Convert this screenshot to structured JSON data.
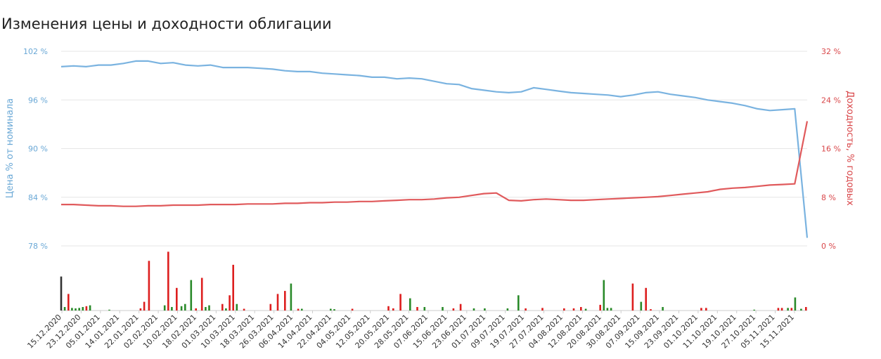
{
  "chart_data": {
    "type": "line",
    "title": "Изменения цены и доходности облигации",
    "y_left": {
      "label": "Цена % от номинала",
      "ticks": [
        "102 %",
        "96 %",
        "90 %",
        "84 %",
        "78 %"
      ],
      "tick_values": [
        102,
        96,
        90,
        84,
        78
      ],
      "range": [
        78,
        102
      ],
      "color": "#7ab3e0"
    },
    "y_right": {
      "label": "Доходность, % годовых",
      "ticks": [
        "32 %",
        "24 %",
        "16 %",
        "8 %",
        "0 %"
      ],
      "tick_values": [
        32,
        24,
        16,
        8,
        0
      ],
      "range": [
        0,
        32
      ],
      "color": "#e05a5c"
    },
    "x_ticks": [
      "15.12.2020",
      "23.12.2020",
      "05.01.2021",
      "14.01.2021",
      "22.01.2021",
      "02.02.2021",
      "10.02.2021",
      "18.02.2021",
      "01.03.2021",
      "10.03.2021",
      "18.03.2021",
      "26.03.2021",
      "06.04.2021",
      "14.04.2021",
      "22.04.2021",
      "04.05.2021",
      "12.05.2021",
      "20.05.2021",
      "28.05.2021",
      "07.06.2021",
      "15.06.2021",
      "23.06.2021",
      "01.07.2021",
      "09.07.2021",
      "19.07.2021",
      "27.07.2021",
      "04.08.2021",
      "12.08.2021",
      "20.08.2021",
      "30.08.2021",
      "07.09.2021",
      "15.09.2021",
      "23.09.2021",
      "01.10.2021",
      "11.10.2021",
      "19.10.2021",
      "27.10.2021",
      "05.11.2021",
      "15.11.2021"
    ],
    "series": [
      {
        "axis": "left",
        "color": "#7ab3e0",
        "points": [
          [
            0,
            100.1
          ],
          [
            1,
            100.2
          ],
          [
            2,
            100.1
          ],
          [
            3,
            100.3
          ],
          [
            4,
            100.3
          ],
          [
            5,
            100.5
          ],
          [
            6,
            100.8
          ],
          [
            7,
            100.8
          ],
          [
            8,
            100.5
          ],
          [
            9,
            100.6
          ],
          [
            10,
            100.3
          ],
          [
            11,
            100.2
          ],
          [
            12,
            100.3
          ],
          [
            13,
            100.0
          ],
          [
            14,
            100.0
          ],
          [
            15,
            100.0
          ],
          [
            16,
            99.9
          ],
          [
            17,
            99.8
          ],
          [
            18,
            99.6
          ],
          [
            19,
            99.5
          ],
          [
            20,
            99.5
          ],
          [
            21,
            99.3
          ],
          [
            22,
            99.2
          ],
          [
            23,
            99.1
          ],
          [
            24,
            99.0
          ],
          [
            25,
            98.8
          ],
          [
            26,
            98.8
          ],
          [
            27,
            98.6
          ],
          [
            28,
            98.7
          ],
          [
            29,
            98.6
          ],
          [
            30,
            98.3
          ],
          [
            31,
            98.0
          ],
          [
            32,
            97.9
          ],
          [
            33,
            97.4
          ],
          [
            34,
            97.2
          ],
          [
            35,
            97.0
          ],
          [
            36,
            96.9
          ],
          [
            37,
            97.0
          ],
          [
            38,
            97.5
          ],
          [
            39,
            97.3
          ],
          [
            40,
            97.1
          ],
          [
            41,
            96.9
          ],
          [
            42,
            96.8
          ],
          [
            43,
            96.7
          ],
          [
            44,
            96.6
          ],
          [
            45,
            96.4
          ],
          [
            46,
            96.6
          ],
          [
            47,
            96.9
          ],
          [
            48,
            97.0
          ],
          [
            49,
            96.7
          ],
          [
            50,
            96.5
          ],
          [
            51,
            96.3
          ],
          [
            52,
            96.0
          ],
          [
            53,
            95.8
          ],
          [
            54,
            95.6
          ],
          [
            55,
            95.3
          ],
          [
            56,
            94.9
          ],
          [
            57,
            94.7
          ],
          [
            58,
            94.8
          ],
          [
            59,
            94.9
          ],
          [
            60,
            79.0
          ]
        ]
      },
      {
        "axis": "right",
        "color": "#e05a5c",
        "points": [
          [
            0,
            6.8
          ],
          [
            1,
            6.8
          ],
          [
            2,
            6.7
          ],
          [
            3,
            6.6
          ],
          [
            4,
            6.6
          ],
          [
            5,
            6.5
          ],
          [
            6,
            6.5
          ],
          [
            7,
            6.6
          ],
          [
            8,
            6.6
          ],
          [
            9,
            6.7
          ],
          [
            10,
            6.7
          ],
          [
            11,
            6.7
          ],
          [
            12,
            6.8
          ],
          [
            13,
            6.8
          ],
          [
            14,
            6.8
          ],
          [
            15,
            6.9
          ],
          [
            16,
            6.9
          ],
          [
            17,
            6.9
          ],
          [
            18,
            7.0
          ],
          [
            19,
            7.0
          ],
          [
            20,
            7.1
          ],
          [
            21,
            7.1
          ],
          [
            22,
            7.2
          ],
          [
            23,
            7.2
          ],
          [
            24,
            7.3
          ],
          [
            25,
            7.3
          ],
          [
            26,
            7.4
          ],
          [
            27,
            7.5
          ],
          [
            28,
            7.6
          ],
          [
            29,
            7.6
          ],
          [
            30,
            7.7
          ],
          [
            31,
            7.9
          ],
          [
            32,
            8.0
          ],
          [
            33,
            8.3
          ],
          [
            34,
            8.6
          ],
          [
            35,
            8.7
          ],
          [
            36,
            7.5
          ],
          [
            37,
            7.4
          ],
          [
            38,
            7.6
          ],
          [
            39,
            7.7
          ],
          [
            40,
            7.6
          ],
          [
            41,
            7.5
          ],
          [
            42,
            7.5
          ],
          [
            43,
            7.6
          ],
          [
            44,
            7.7
          ],
          [
            45,
            7.8
          ],
          [
            46,
            7.9
          ],
          [
            47,
            8.0
          ],
          [
            48,
            8.1
          ],
          [
            49,
            8.3
          ],
          [
            50,
            8.5
          ],
          [
            51,
            8.7
          ],
          [
            52,
            8.9
          ],
          [
            53,
            9.3
          ],
          [
            54,
            9.5
          ],
          [
            55,
            9.6
          ],
          [
            56,
            9.8
          ],
          [
            57,
            10.0
          ],
          [
            58,
            10.1
          ],
          [
            59,
            10.2
          ],
          [
            60,
            20.5
          ]
        ]
      }
    ],
    "volume_bars": [
      {
        "x": 0,
        "h": 0.78,
        "color": "#333333"
      },
      {
        "x": 0.3,
        "h": 0.08,
        "color": "#2a8a2a"
      },
      {
        "x": 0.6,
        "h": 0.38,
        "color": "#dd1f1f"
      },
      {
        "x": 0.9,
        "h": 0.06,
        "color": "#2a8a2a"
      },
      {
        "x": 1.2,
        "h": 0.05,
        "color": "#2a8a2a"
      },
      {
        "x": 1.5,
        "h": 0.06,
        "color": "#2a8a2a"
      },
      {
        "x": 1.8,
        "h": 0.08,
        "color": "#2a8a2a"
      },
      {
        "x": 2.1,
        "h": 0.1,
        "color": "#dd1f1f"
      },
      {
        "x": 2.4,
        "h": 0.12,
        "color": "#2a8a2a"
      },
      {
        "x": 4,
        "h": 0.02,
        "color": "#2a8a2a"
      },
      {
        "x": 6.6,
        "h": 0.05,
        "color": "#dd1f1f"
      },
      {
        "x": 6.9,
        "h": 0.2,
        "color": "#dd1f1f"
      },
      {
        "x": 7.3,
        "h": 1.14,
        "color": "#dd1f1f"
      },
      {
        "x": 8.6,
        "h": 0.12,
        "color": "#2a8a2a"
      },
      {
        "x": 8.9,
        "h": 1.35,
        "color": "#dd1f1f"
      },
      {
        "x": 9.2,
        "h": 0.08,
        "color": "#2a8a2a"
      },
      {
        "x": 9.6,
        "h": 0.52,
        "color": "#dd1f1f"
      },
      {
        "x": 10.0,
        "h": 0.1,
        "color": "#2a8a2a"
      },
      {
        "x": 10.3,
        "h": 0.15,
        "color": "#2a8a2a"
      },
      {
        "x": 10.8,
        "h": 0.7,
        "color": "#2a8a2a"
      },
      {
        "x": 11.2,
        "h": 0.05,
        "color": "#dd1f1f"
      },
      {
        "x": 11.7,
        "h": 0.75,
        "color": "#dd1f1f"
      },
      {
        "x": 12.0,
        "h": 0.08,
        "color": "#2a8a2a"
      },
      {
        "x": 12.3,
        "h": 0.12,
        "color": "#2a8a2a"
      },
      {
        "x": 13.4,
        "h": 0.15,
        "color": "#dd1f1f"
      },
      {
        "x": 13.7,
        "h": 0.05,
        "color": "#2a8a2a"
      },
      {
        "x": 14.0,
        "h": 0.35,
        "color": "#dd1f1f"
      },
      {
        "x": 14.3,
        "h": 1.05,
        "color": "#dd1f1f"
      },
      {
        "x": 14.6,
        "h": 0.15,
        "color": "#2a8a2a"
      },
      {
        "x": 15.2,
        "h": 0.04,
        "color": "#dd1f1f"
      },
      {
        "x": 17.4,
        "h": 0.15,
        "color": "#dd1f1f"
      },
      {
        "x": 18.0,
        "h": 0.38,
        "color": "#dd1f1f"
      },
      {
        "x": 18.6,
        "h": 0.45,
        "color": "#dd1f1f"
      },
      {
        "x": 19.1,
        "h": 0.62,
        "color": "#2a8a2a"
      },
      {
        "x": 19.7,
        "h": 0.04,
        "color": "#dd1f1f"
      },
      {
        "x": 20.0,
        "h": 0.04,
        "color": "#2a8a2a"
      },
      {
        "x": 22.4,
        "h": 0.04,
        "color": "#2a8a2a"
      },
      {
        "x": 22.7,
        "h": 0.03,
        "color": "#2a8a2a"
      },
      {
        "x": 24.2,
        "h": 0.04,
        "color": "#dd1f1f"
      },
      {
        "x": 27.2,
        "h": 0.1,
        "color": "#dd1f1f"
      },
      {
        "x": 27.6,
        "h": 0.05,
        "color": "#dd1f1f"
      },
      {
        "x": 28.2,
        "h": 0.38,
        "color": "#dd1f1f"
      },
      {
        "x": 29.0,
        "h": 0.28,
        "color": "#2a8a2a"
      },
      {
        "x": 29.6,
        "h": 0.08,
        "color": "#dd1f1f"
      },
      {
        "x": 30.2,
        "h": 0.08,
        "color": "#2a8a2a"
      },
      {
        "x": 31.7,
        "h": 0.08,
        "color": "#2a8a2a"
      },
      {
        "x": 32.6,
        "h": 0.05,
        "color": "#dd1f1f"
      },
      {
        "x": 33.2,
        "h": 0.15,
        "color": "#dd1f1f"
      },
      {
        "x": 34.3,
        "h": 0.05,
        "color": "#2a8a2a"
      },
      {
        "x": 35.2,
        "h": 0.05,
        "color": "#2a8a2a"
      },
      {
        "x": 37.1,
        "h": 0.05,
        "color": "#2a8a2a"
      },
      {
        "x": 38.0,
        "h": 0.35,
        "color": "#2a8a2a"
      },
      {
        "x": 38.6,
        "h": 0.05,
        "color": "#dd1f1f"
      },
      {
        "x": 40.0,
        "h": 0.06,
        "color": "#dd1f1f"
      },
      {
        "x": 41.8,
        "h": 0.05,
        "color": "#dd1f1f"
      },
      {
        "x": 42.6,
        "h": 0.05,
        "color": "#dd1f1f"
      },
      {
        "x": 43.2,
        "h": 0.08,
        "color": "#dd1f1f"
      },
      {
        "x": 43.6,
        "h": 0.04,
        "color": "#2a8a2a"
      },
      {
        "x": 44.8,
        "h": 0.13,
        "color": "#dd1f1f"
      },
      {
        "x": 45.1,
        "h": 0.7,
        "color": "#2a8a2a"
      },
      {
        "x": 45.4,
        "h": 0.06,
        "color": "#2a8a2a"
      },
      {
        "x": 45.7,
        "h": 0.06,
        "color": "#2a8a2a"
      },
      {
        "x": 47.5,
        "h": 0.62,
        "color": "#dd1f1f"
      },
      {
        "x": 48.2,
        "h": 0.2,
        "color": "#2a8a2a"
      },
      {
        "x": 48.6,
        "h": 0.52,
        "color": "#dd1f1f"
      },
      {
        "x": 49.0,
        "h": 0.03,
        "color": "#dd1f1f"
      },
      {
        "x": 50.0,
        "h": 0.08,
        "color": "#2a8a2a"
      },
      {
        "x": 53.2,
        "h": 0.06,
        "color": "#dd1f1f"
      },
      {
        "x": 53.6,
        "h": 0.06,
        "color": "#dd1f1f"
      },
      {
        "x": 57.6,
        "h": 0.02,
        "color": "#2a8a2a"
      },
      {
        "x": 59.6,
        "h": 0.06,
        "color": "#dd1f1f"
      },
      {
        "x": 59.9,
        "h": 0.06,
        "color": "#dd1f1f"
      },
      {
        "x": 60.4,
        "h": 0.06,
        "color": "#2a8a2a"
      },
      {
        "x": 60.7,
        "h": 0.06,
        "color": "#dd1f1f"
      },
      {
        "x": 61.0,
        "h": 0.3,
        "color": "#2a8a2a"
      },
      {
        "x": 61.5,
        "h": 0.04,
        "color": "#2a8a2a"
      },
      {
        "x": 61.9,
        "h": 0.08,
        "color": "#dd1f1f"
      }
    ],
    "grid": true
  }
}
